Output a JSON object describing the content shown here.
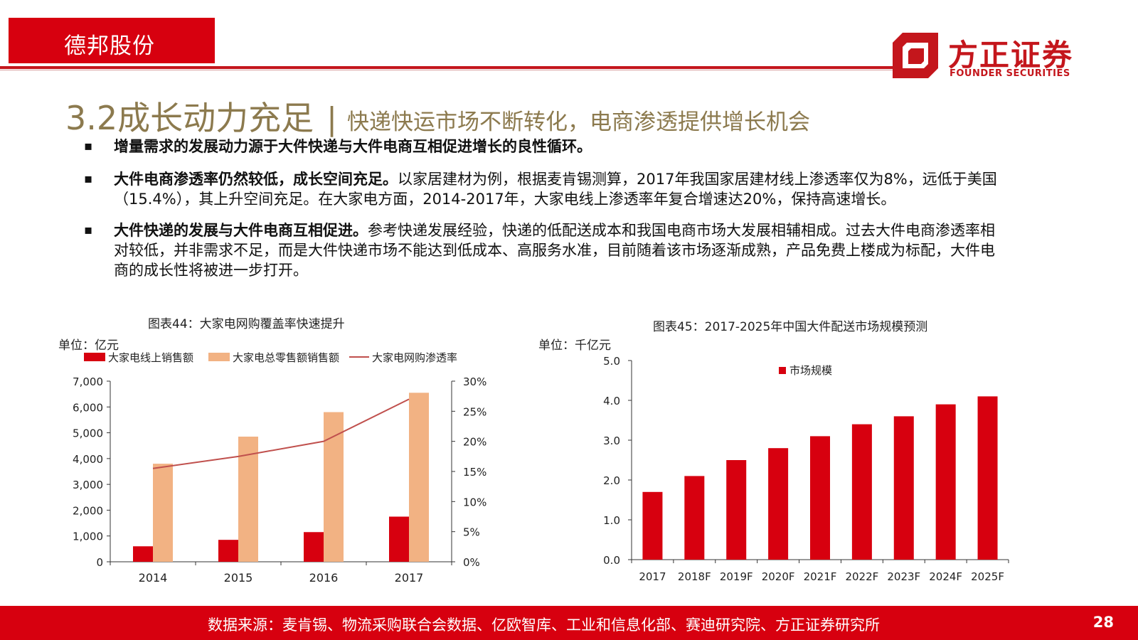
{
  "header": {
    "company": "德邦股份"
  },
  "brand": {
    "name_cn": "方正证券",
    "name_en": "FOUNDER SECURITIES",
    "accent": "#d7000f",
    "title_color": "#8c7a4e"
  },
  "title": {
    "main": "3.2成长动力充足",
    "separator": "|",
    "sub": "快递快运市场不断转化，电商渗透提供增长机会"
  },
  "bullets": [
    {
      "bold": "增量需求的发展动力源于大件快递与大件电商互相促进增长的良性循环。",
      "text": ""
    },
    {
      "bold": "大件电商渗透率仍然较低，成长空间充足。",
      "text": "以家居建材为例，根据麦肯锡测算，2017年我国家居建材线上渗透率仅为8%，远低于美国（15.4%），其上升空间充足。在大家电方面，2014-2017年，大家电线上渗透率年复合增速达20%，保持高速增长。"
    },
    {
      "bold": "大件快递的发展与大件电商互相促进。",
      "text": "参考快递发展经验，快递的低配送成本和我国电商市场大发展相辅相成。过去大件电商渗透率相对较低，并非需求不足，而是大件快递市场不能达到低成本、高服务水准，目前随着该市场逐渐成熟，产品免费上楼成为标配，大件电商的成长性将被进一步打开。"
    }
  ],
  "charts": {
    "chart44": {
      "title": "图表44：大家电网购覆盖率快速提升",
      "unit": "单位：亿元"
    },
    "chart45": {
      "title": "图表45：2017-2025年中国大件配送市场规模预测",
      "unit": "单位：千亿元"
    }
  },
  "chart_data": [
    {
      "type": "bar",
      "title": "图表44：大家电网购覆盖率快速提升",
      "categories": [
        "2014",
        "2015",
        "2016",
        "2017"
      ],
      "series": [
        {
          "name": "大家电线上销售额",
          "type": "bar",
          "axis": "left",
          "color": "#d7000f",
          "values": [
            600,
            850,
            1150,
            1750
          ]
        },
        {
          "name": "大家电总零售额销售额",
          "type": "bar",
          "axis": "left",
          "color": "#f2b283",
          "values": [
            3800,
            4850,
            5800,
            6550
          ]
        },
        {
          "name": "大家电网购渗透率",
          "type": "line",
          "axis": "right",
          "color": "#c0504d",
          "values": [
            15.5,
            17.5,
            20,
            27
          ]
        }
      ],
      "ylim": [
        0,
        7000
      ],
      "yticks": [
        "0",
        "1,000",
        "2,000",
        "3,000",
        "4,000",
        "5,000",
        "6,000",
        "7,000"
      ],
      "y2lim": [
        0,
        30
      ],
      "y2ticks": [
        "0%",
        "5%",
        "10%",
        "15%",
        "20%",
        "25%",
        "30%"
      ],
      "legend": "top"
    },
    {
      "type": "bar",
      "title": "图表45：2017-2025年中国大件配送市场规模预测",
      "categories": [
        "2017",
        "2018F",
        "2019F",
        "2020F",
        "2021F",
        "2022F",
        "2023F",
        "2024F",
        "2025F"
      ],
      "series": [
        {
          "name": "市场规模",
          "color": "#d7000f",
          "values": [
            1.7,
            2.1,
            2.5,
            2.8,
            3.1,
            3.4,
            3.6,
            3.9,
            4.1
          ]
        }
      ],
      "ylim": [
        0,
        5
      ],
      "yticks": [
        "0.0",
        "1.0",
        "2.0",
        "3.0",
        "4.0",
        "5.0"
      ],
      "legend": "top-left"
    }
  ],
  "footer": {
    "source": "数据来源：麦肯锡、物流采购联合会数据、亿欧智库、工业和信息化部、赛迪研究院、方正证券研究所",
    "page": "28"
  }
}
